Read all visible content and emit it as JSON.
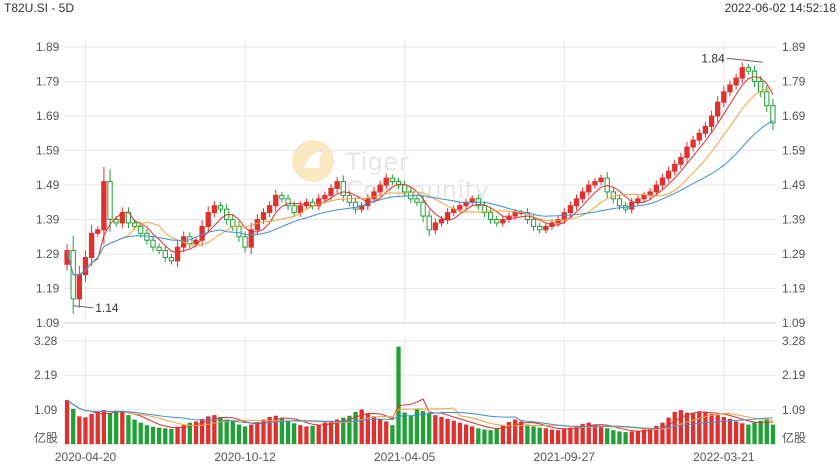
{
  "header": {
    "symbol_period": "T82U.SI - 5D",
    "datetime": "2022-06-02 14:52:18"
  },
  "watermark": {
    "text": "Tiger Community"
  },
  "colors": {
    "up": "#e0312f",
    "down": "#1fa136",
    "ma_short": "#e0312f",
    "ma_mid": "#f5a33b",
    "ma_long": "#3b8fdc",
    "grid": "#e8e8e8",
    "axis_text": "#555555"
  },
  "chart_data": {
    "type": "candlestick",
    "price_axis": {
      "range": [
        1.09,
        1.89
      ],
      "ticks": [
        "1.89",
        "1.79",
        "1.69",
        "1.59",
        "1.49",
        "1.39",
        "1.29",
        "1.19",
        "1.09"
      ]
    },
    "volume_axis": {
      "range": [
        0,
        3.28
      ],
      "ticks": [
        "3.28",
        "2.19",
        "1.09"
      ],
      "unit": "亿股"
    },
    "x_ticks": [
      "2020-04-20",
      "2020-10-12",
      "2021-04-05",
      "2021-09-27",
      "2022-03-21"
    ],
    "x_tick_index": [
      3,
      29,
      55,
      81,
      107
    ],
    "annotations": {
      "high": "1.84",
      "low": "1.14",
      "high_index": 114,
      "low_index": 1
    },
    "closes": [
      1.3,
      1.16,
      1.23,
      1.28,
      1.35,
      1.36,
      1.5,
      1.39,
      1.38,
      1.41,
      1.38,
      1.37,
      1.35,
      1.33,
      1.31,
      1.3,
      1.28,
      1.27,
      1.31,
      1.34,
      1.32,
      1.33,
      1.37,
      1.41,
      1.43,
      1.42,
      1.39,
      1.37,
      1.34,
      1.31,
      1.36,
      1.39,
      1.41,
      1.43,
      1.46,
      1.45,
      1.43,
      1.41,
      1.43,
      1.44,
      1.43,
      1.45,
      1.46,
      1.48,
      1.5,
      1.46,
      1.44,
      1.42,
      1.43,
      1.45,
      1.47,
      1.49,
      1.51,
      1.5,
      1.49,
      1.47,
      1.45,
      1.44,
      1.4,
      1.36,
      1.38,
      1.39,
      1.41,
      1.42,
      1.43,
      1.44,
      1.45,
      1.43,
      1.41,
      1.39,
      1.38,
      1.39,
      1.4,
      1.41,
      1.41,
      1.39,
      1.37,
      1.36,
      1.37,
      1.38,
      1.39,
      1.41,
      1.43,
      1.45,
      1.47,
      1.49,
      1.5,
      1.51,
      1.47,
      1.45,
      1.43,
      1.42,
      1.44,
      1.45,
      1.46,
      1.47,
      1.49,
      1.51,
      1.53,
      1.55,
      1.57,
      1.6,
      1.62,
      1.64,
      1.66,
      1.69,
      1.73,
      1.76,
      1.78,
      1.8,
      1.83,
      1.82,
      1.79,
      1.76,
      1.72,
      1.67
    ],
    "volumes": [
      1.4,
      1.12,
      0.88,
      0.85,
      0.96,
      1.02,
      1.08,
      0.98,
      1.06,
      1.02,
      0.92,
      0.78,
      0.68,
      0.6,
      0.55,
      0.52,
      0.5,
      0.48,
      0.55,
      0.6,
      0.68,
      0.72,
      0.8,
      0.88,
      0.92,
      0.86,
      0.78,
      0.72,
      0.62,
      0.56,
      0.62,
      0.7,
      0.78,
      0.86,
      0.9,
      0.84,
      0.74,
      0.66,
      0.6,
      0.56,
      0.58,
      0.62,
      0.68,
      0.74,
      0.78,
      0.84,
      0.9,
      1.02,
      1.1,
      0.98,
      0.88,
      0.8,
      0.72,
      0.6,
      3.1,
      1.0,
      0.9,
      1.1,
      1.05,
      0.98,
      0.92,
      0.86,
      0.8,
      0.74,
      0.68,
      0.62,
      0.56,
      0.5,
      0.46,
      0.44,
      0.5,
      0.6,
      0.7,
      0.78,
      0.72,
      0.62,
      0.56,
      0.52,
      0.5,
      0.46,
      0.44,
      0.48,
      0.52,
      0.58,
      0.64,
      0.68,
      0.62,
      0.56,
      0.5,
      0.44,
      0.4,
      0.38,
      0.4,
      0.42,
      0.46,
      0.5,
      0.58,
      0.68,
      0.84,
      1.02,
      1.08,
      1.0,
      0.98,
      1.04,
      1.0,
      0.96,
      0.92,
      0.86,
      0.8,
      0.72,
      0.66,
      0.62,
      0.68,
      0.74,
      0.8,
      0.62
    ]
  }
}
